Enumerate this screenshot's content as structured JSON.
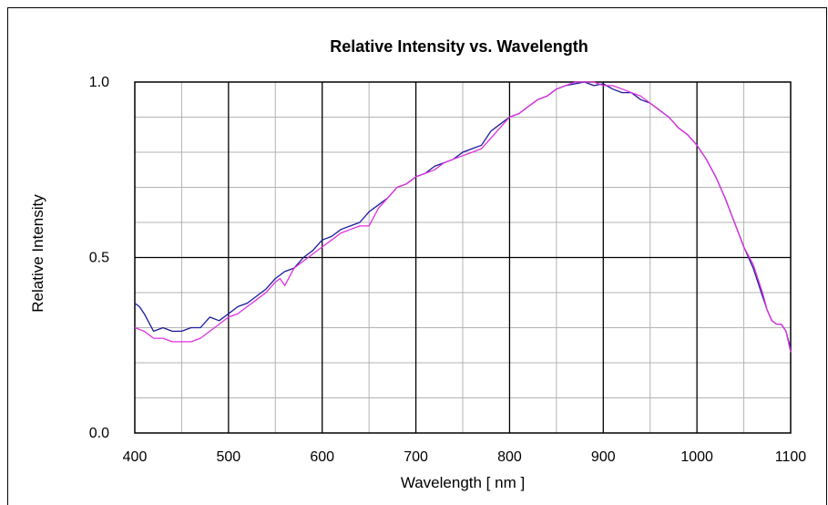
{
  "chart_data": {
    "type": "line",
    "title": "Relative Intensity  vs.  Wavelength",
    "xlabel": "Wavelength   [ nm ]",
    "ylabel": "Relative Intensity",
    "xlim": [
      400,
      1100
    ],
    "ylim": [
      0.0,
      1.0
    ],
    "x_ticks": [
      400,
      500,
      600,
      700,
      800,
      900,
      1000,
      1100
    ],
    "x_tick_labels": [
      "400",
      "500",
      "600",
      "700",
      "800",
      "900",
      "1000",
      "1100"
    ],
    "y_ticks": [
      0.0,
      0.5,
      1.0
    ],
    "y_tick_labels": [
      "0.0",
      "0.5",
      "1.0"
    ],
    "grid": true,
    "colors": {
      "major_grid": "#000000",
      "minor_grid": "#b3b3b3"
    },
    "series": [
      {
        "color": "#1a1a9c",
        "x": [
          400,
          405,
          410,
          420,
          430,
          440,
          450,
          460,
          470,
          480,
          490,
          500,
          510,
          520,
          530,
          540,
          550,
          560,
          570,
          580,
          590,
          600,
          610,
          620,
          630,
          640,
          650,
          660,
          670,
          680,
          690,
          700,
          710,
          720,
          730,
          740,
          750,
          760,
          770,
          780,
          790,
          800,
          810,
          820,
          830,
          840,
          850,
          860,
          870,
          880,
          890,
          900,
          910,
          920,
          930,
          940,
          950,
          960,
          970,
          980,
          990,
          1000,
          1010,
          1020,
          1030,
          1040,
          1050,
          1060,
          1070,
          1075,
          1080,
          1085,
          1090,
          1095,
          1100
        ],
        "y": [
          0.37,
          0.36,
          0.34,
          0.29,
          0.3,
          0.29,
          0.29,
          0.3,
          0.3,
          0.33,
          0.32,
          0.34,
          0.36,
          0.37,
          0.39,
          0.41,
          0.44,
          0.46,
          0.47,
          0.5,
          0.52,
          0.55,
          0.56,
          0.58,
          0.59,
          0.6,
          0.63,
          0.65,
          0.67,
          0.7,
          0.71,
          0.73,
          0.74,
          0.76,
          0.77,
          0.78,
          0.8,
          0.81,
          0.82,
          0.86,
          0.88,
          0.9,
          0.91,
          0.93,
          0.95,
          0.96,
          0.98,
          0.99,
          0.995,
          1.0,
          0.99,
          0.995,
          0.98,
          0.97,
          0.97,
          0.95,
          0.94,
          0.92,
          0.9,
          0.87,
          0.85,
          0.82,
          0.78,
          0.73,
          0.67,
          0.6,
          0.53,
          0.47,
          0.39,
          0.35,
          0.32,
          0.31,
          0.31,
          0.29,
          0.24
        ]
      },
      {
        "color": "#e030e0",
        "x": [
          400,
          410,
          420,
          430,
          440,
          450,
          460,
          470,
          480,
          490,
          500,
          510,
          520,
          530,
          540,
          550,
          555,
          560,
          570,
          580,
          590,
          600,
          610,
          620,
          630,
          640,
          650,
          660,
          670,
          680,
          690,
          700,
          710,
          720,
          730,
          740,
          750,
          760,
          770,
          780,
          790,
          800,
          810,
          820,
          830,
          840,
          850,
          860,
          870,
          880,
          890,
          900,
          910,
          920,
          930,
          940,
          950,
          960,
          970,
          980,
          990,
          1000,
          1010,
          1020,
          1030,
          1040,
          1050,
          1060,
          1070,
          1075,
          1080,
          1085,
          1090,
          1095,
          1100
        ],
        "y": [
          0.3,
          0.29,
          0.27,
          0.27,
          0.26,
          0.26,
          0.26,
          0.27,
          0.29,
          0.31,
          0.33,
          0.34,
          0.36,
          0.38,
          0.4,
          0.43,
          0.44,
          0.42,
          0.47,
          0.49,
          0.51,
          0.53,
          0.55,
          0.57,
          0.58,
          0.59,
          0.59,
          0.64,
          0.67,
          0.7,
          0.71,
          0.73,
          0.74,
          0.75,
          0.77,
          0.78,
          0.79,
          0.8,
          0.81,
          0.84,
          0.87,
          0.9,
          0.91,
          0.93,
          0.95,
          0.96,
          0.98,
          0.99,
          1.0,
          1.0,
          1.0,
          0.99,
          0.99,
          0.98,
          0.97,
          0.96,
          0.94,
          0.92,
          0.9,
          0.87,
          0.85,
          0.82,
          0.78,
          0.73,
          0.67,
          0.6,
          0.53,
          0.48,
          0.4,
          0.35,
          0.32,
          0.31,
          0.31,
          0.29,
          0.23
        ]
      }
    ]
  }
}
